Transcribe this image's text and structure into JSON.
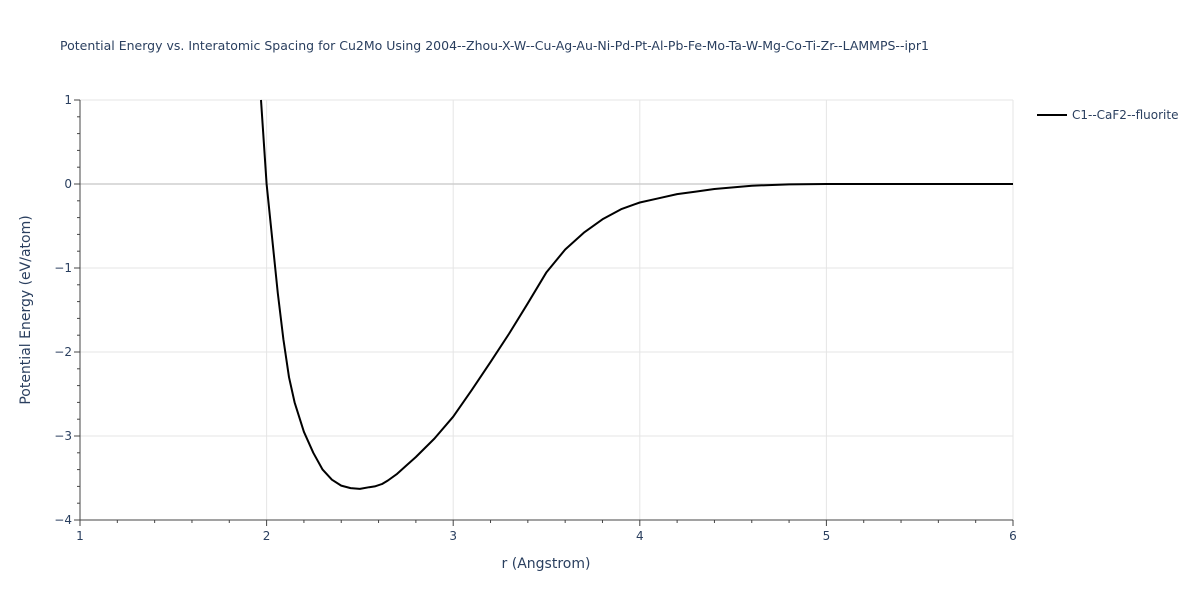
{
  "chart_data": {
    "type": "line",
    "title": "Potential Energy vs. Interatomic Spacing for Cu2Mo Using 2004--Zhou-X-W--Cu-Ag-Au-Ni-Pd-Pt-Al-Pb-Fe-Mo-Ta-W-Mg-Co-Ti-Zr--LAMMPS--ipr1",
    "xlabel": "r (Angstrom)",
    "ylabel": "Potential Energy (eV/atom)",
    "xlim": [
      1,
      6
    ],
    "ylim": [
      -4,
      1
    ],
    "xticks": [
      1,
      2,
      3,
      4,
      5,
      6
    ],
    "xtick_labels": [
      "1",
      "2",
      "3",
      "4",
      "5",
      "6"
    ],
    "yticks": [
      1,
      0,
      -1,
      -2,
      -3,
      -4
    ],
    "ytick_labels": [
      "1",
      "0",
      "−1",
      "−2",
      "−3",
      "−4"
    ],
    "grid": true,
    "legend_position": "top-right",
    "series": [
      {
        "name": "C1--CaF2--fluorite",
        "color": "#000000",
        "x": [
          1.97,
          2.0,
          2.03,
          2.06,
          2.09,
          2.12,
          2.15,
          2.2,
          2.25,
          2.3,
          2.35,
          2.4,
          2.45,
          2.5,
          2.55,
          2.58,
          2.62,
          2.65,
          2.7,
          2.75,
          2.8,
          2.9,
          3.0,
          3.1,
          3.2,
          3.3,
          3.4,
          3.5,
          3.6,
          3.7,
          3.8,
          3.9,
          4.0,
          4.1,
          4.2,
          4.3,
          4.4,
          4.5,
          4.6,
          4.8,
          5.0,
          5.2,
          5.5,
          6.0
        ],
        "y": [
          1.0,
          0.0,
          -0.65,
          -1.3,
          -1.85,
          -2.3,
          -2.6,
          -2.95,
          -3.2,
          -3.4,
          -3.52,
          -3.59,
          -3.62,
          -3.63,
          -3.61,
          -3.6,
          -3.57,
          -3.53,
          -3.45,
          -3.35,
          -3.25,
          -3.03,
          -2.77,
          -2.45,
          -2.12,
          -1.78,
          -1.42,
          -1.05,
          -0.78,
          -0.58,
          -0.42,
          -0.3,
          -0.22,
          -0.17,
          -0.12,
          -0.09,
          -0.06,
          -0.04,
          -0.02,
          -0.005,
          0.0,
          0.0,
          0.0,
          0.0
        ]
      }
    ]
  }
}
